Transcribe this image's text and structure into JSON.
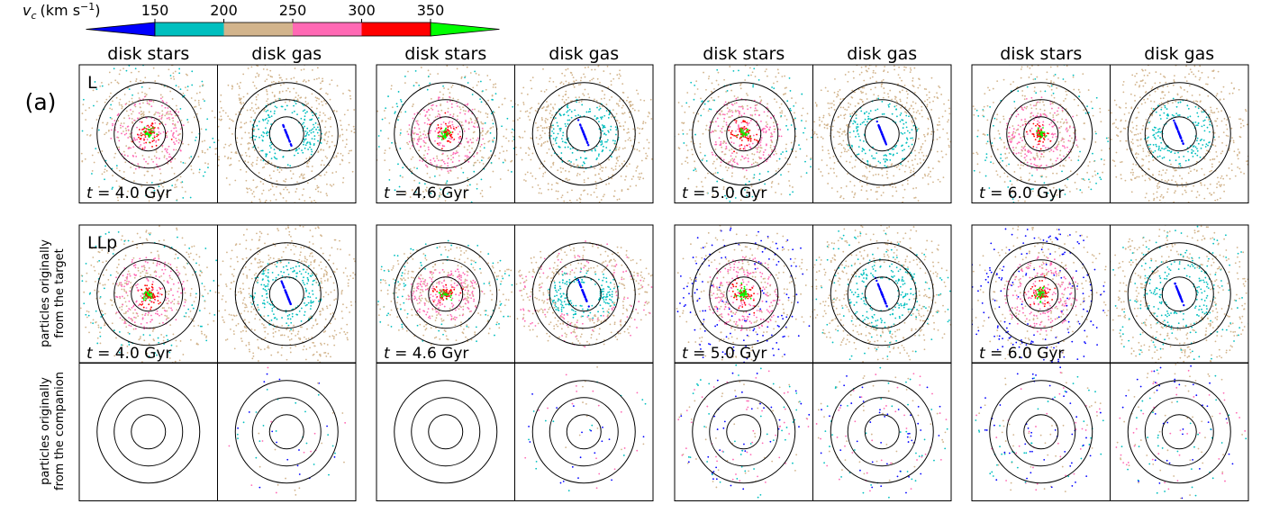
{
  "figure": {
    "panel_label": "(a)",
    "colorbar": {
      "label": {
        "symbol": "v",
        "subscript": "c",
        "unit": "(km s",
        "exponent": "−1",
        "close": ")"
      },
      "ticks": [
        150,
        200,
        250,
        300,
        350
      ],
      "colors": [
        "#0000ff",
        "#00bfbf",
        "#d2b48c",
        "#ff69b4",
        "#ff0000",
        "#00ff00"
      ]
    },
    "columns": [
      "disk stars",
      "disk gas",
      "disk stars",
      "disk gas",
      "disk stars",
      "disk gas",
      "disk stars",
      "disk gas"
    ],
    "models": [
      "L",
      "LLp"
    ],
    "row_labels": [
      [
        "particles originally",
        "from the target"
      ],
      [
        "particles originally",
        "from the companion"
      ]
    ],
    "time_symbol": "t",
    "times": [
      " = 4.0 Gyr",
      " = 4.6 Gyr",
      " = 5.0 Gyr",
      " = 6.0 Gyr"
    ]
  }
}
